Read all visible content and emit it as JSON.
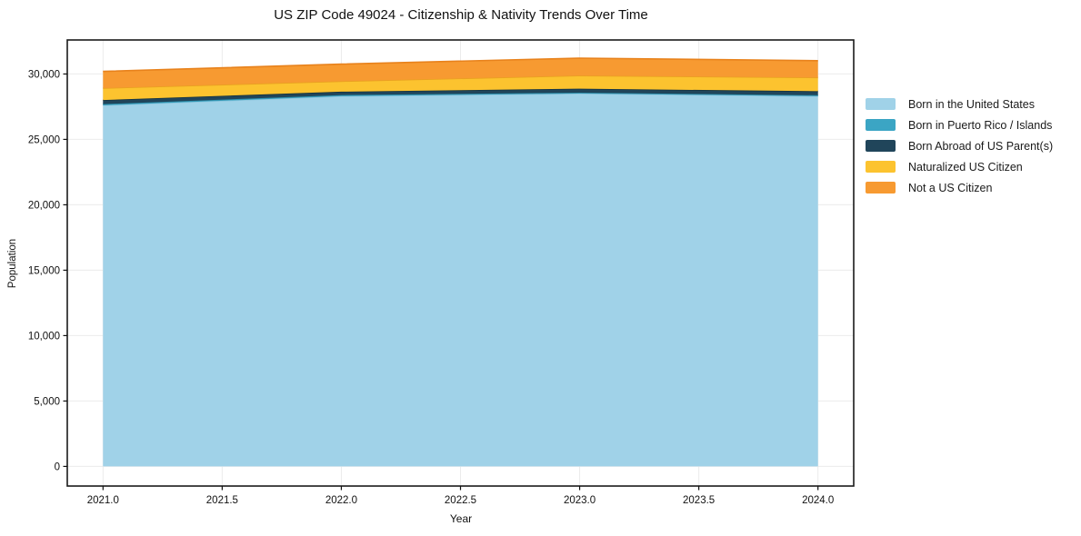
{
  "chart_data": {
    "type": "area",
    "title": "US ZIP Code 49024 - Citizenship & Nativity Trends Over Time",
    "xlabel": "Year",
    "ylabel": "Population",
    "x": [
      2021,
      2022,
      2023,
      2024
    ],
    "x_ticks": [
      2021.0,
      2021.5,
      2022.0,
      2022.5,
      2023.0,
      2023.5,
      2024.0
    ],
    "x_tick_labels": [
      "2021.0",
      "2021.5",
      "2022.0",
      "2022.5",
      "2023.0",
      "2023.5",
      "2024.0"
    ],
    "y_ticks": [
      0,
      5000,
      10000,
      15000,
      20000,
      25000,
      30000
    ],
    "y_tick_labels": [
      "0",
      "5,000",
      "10,000",
      "15,000",
      "20,000",
      "25,000",
      "30,000"
    ],
    "xlim": [
      2020.85,
      2024.15
    ],
    "ylim": [
      -1500,
      32600
    ],
    "grid": true,
    "grid_color": "#ebebeb",
    "frame_color": "#1a1a1a",
    "legend_position": "right",
    "series": [
      {
        "name": "Born in the United States",
        "color": "#A0D2E8",
        "edge": "#8FC6DE",
        "values": [
          27600,
          28300,
          28500,
          28300
        ]
      },
      {
        "name": "Born in Puerto Rico / Islands",
        "color": "#3BA5C4",
        "edge": "#2B8CA8",
        "values": [
          100,
          90,
          70,
          80
        ]
      },
      {
        "name": "Born Abroad of US Parent(s)",
        "color": "#20455A",
        "edge": "#16333F",
        "values": [
          310,
          260,
          310,
          300
        ]
      },
      {
        "name": "Naturalized US Citizen",
        "color": "#FCC32F",
        "edge": "#E9A120",
        "values": [
          910,
          800,
          1000,
          1050
        ]
      },
      {
        "name": "Not a US Citizen",
        "color": "#F79A31",
        "edge": "#E8821C",
        "values": [
          1280,
          1300,
          1330,
          1290
        ]
      }
    ]
  }
}
